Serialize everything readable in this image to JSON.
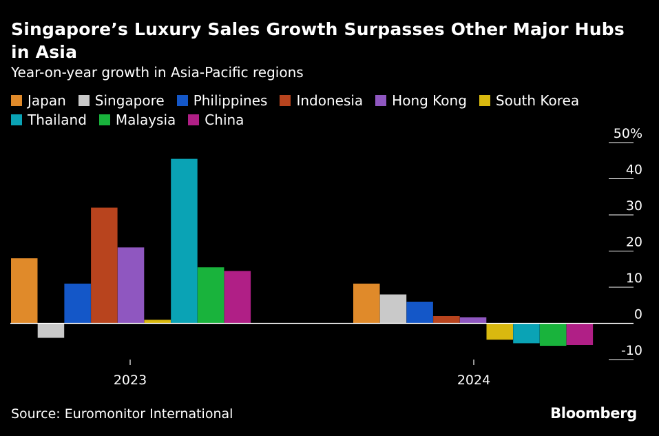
{
  "title": "Singapore’s Luxury Sales Growth Surpasses Other Major Hubs in Asia",
  "subtitle": "Year-on-year growth in Asia-Pacific regions",
  "source": "Source: Euromonitor International",
  "brand": "Bloomberg",
  "chart_data": {
    "type": "bar",
    "categories": [
      "2023",
      "2024"
    ],
    "series": [
      {
        "name": "Japan",
        "color": "#e08a2a",
        "values": [
          18,
          11
        ]
      },
      {
        "name": "Singapore",
        "color": "#c9c9c9",
        "values": [
          -4,
          8
        ]
      },
      {
        "name": "Philippines",
        "color": "#1457c8",
        "values": [
          11,
          6
        ]
      },
      {
        "name": "Indonesia",
        "color": "#b8441e",
        "values": [
          32,
          2
        ]
      },
      {
        "name": "Hong Kong",
        "color": "#8f57c0",
        "values": [
          21,
          1.7
        ]
      },
      {
        "name": "South Korea",
        "color": "#d9b90f",
        "values": [
          1,
          -4.5
        ]
      },
      {
        "name": "Thailand",
        "color": "#0aa3b5",
        "values": [
          45.5,
          -5.5
        ]
      },
      {
        "name": "Malaysia",
        "color": "#19b33c",
        "values": [
          15.5,
          -6.2
        ]
      },
      {
        "name": "China",
        "color": "#b01f86",
        "values": [
          14.5,
          -6
        ]
      }
    ],
    "ylim": [
      -10,
      50
    ],
    "yticks": [
      50,
      40,
      30,
      20,
      10,
      0,
      -10
    ],
    "ytick_labels": [
      "50%",
      "40",
      "30",
      "20",
      "10",
      "0",
      "-10"
    ],
    "legend_position": "top-left",
    "grid": false
  }
}
